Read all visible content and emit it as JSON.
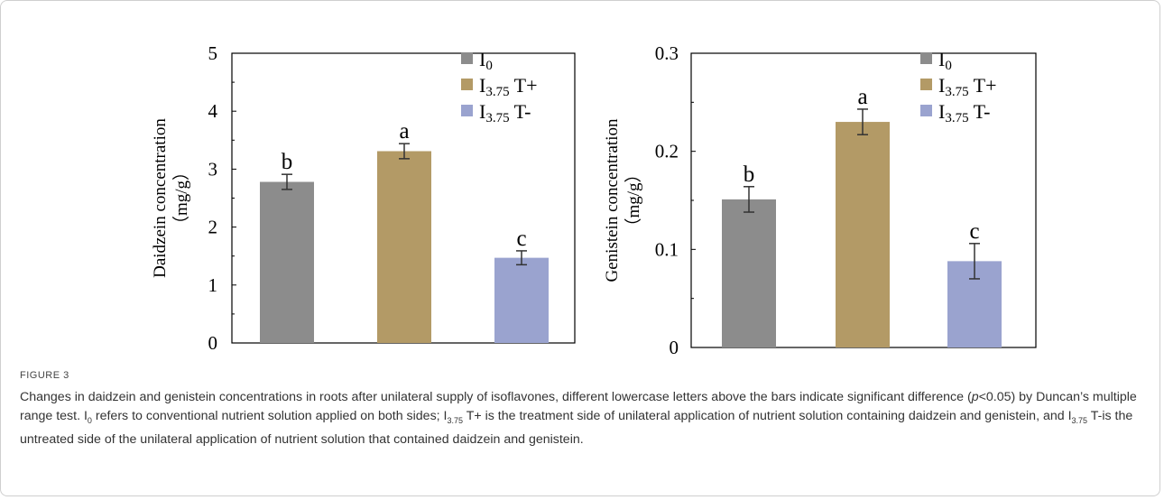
{
  "chart_data": [
    {
      "type": "bar",
      "categories": [
        "I0",
        "I3.75 T+",
        "I3.75 T-"
      ],
      "values": [
        2.78,
        3.31,
        1.47
      ],
      "errors": [
        0.13,
        0.13,
        0.12
      ],
      "significance_letters": [
        "b",
        "a",
        "c"
      ],
      "ylabel_line1": "Daidzein concentration",
      "ylabel_line2": "（mg/g）",
      "ylim": [
        0,
        5
      ],
      "yticks": [
        0,
        1,
        2,
        3,
        4,
        5
      ],
      "ytick_labels": [
        "0",
        "1",
        "2",
        "3",
        "4",
        "5"
      ],
      "xlabel": "",
      "grid": false,
      "legend_placement": "top-right"
    },
    {
      "type": "bar",
      "categories": [
        "I0",
        "I3.75 T+",
        "I3.75 T-"
      ],
      "values": [
        0.151,
        0.23,
        0.088
      ],
      "errors": [
        0.013,
        0.013,
        0.018
      ],
      "significance_letters": [
        "b",
        "a",
        "c"
      ],
      "ylabel_line1": "Genistein concentration",
      "ylabel_line2": "（mg/g）",
      "ylim": [
        0,
        0.3
      ],
      "yticks": [
        0,
        0.1,
        0.2,
        0.3
      ],
      "ytick_labels": [
        "0",
        "0.1",
        "0.2",
        "0.3"
      ],
      "xlabel": "",
      "grid": false,
      "legend_placement": "top-right"
    }
  ],
  "legend": [
    {
      "base": "I",
      "sub": "0",
      "suffix": "",
      "color": "#8c8c8c"
    },
    {
      "base": "I",
      "sub": "3.75",
      "suffix": " T+",
      "color": "#b39a66"
    },
    {
      "base": "I",
      "sub": "3.75",
      "suffix": " T-",
      "color": "#9aa3cf"
    }
  ],
  "colors": {
    "bar_I0": "#8c8c8c",
    "bar_T_plus": "#b39a66",
    "bar_T_minus": "#9aa3cf",
    "axis": "#000000"
  },
  "caption": {
    "figure_label": "FIGURE 3",
    "part1": "Changes in daidzein and genistein concentrations in roots after unilateral supply of isoflavones, different lowercase letters above the bars indicate significant difference (",
    "p_italic": "p",
    "part2": "<0.05) by Duncan’s multiple range test. I",
    "sub1": "0",
    "part3": " refers to conventional nutrient solution applied on both sides; I",
    "sub2": "3.75",
    "part4": " T+ is the treatment side of unilateral application of nutrient solution containing daidzein and genistein, and I",
    "sub3": "3.75",
    "part5": " T-is the untreated side of the unilateral application of nutrient solution that contained daidzein and genistein."
  }
}
